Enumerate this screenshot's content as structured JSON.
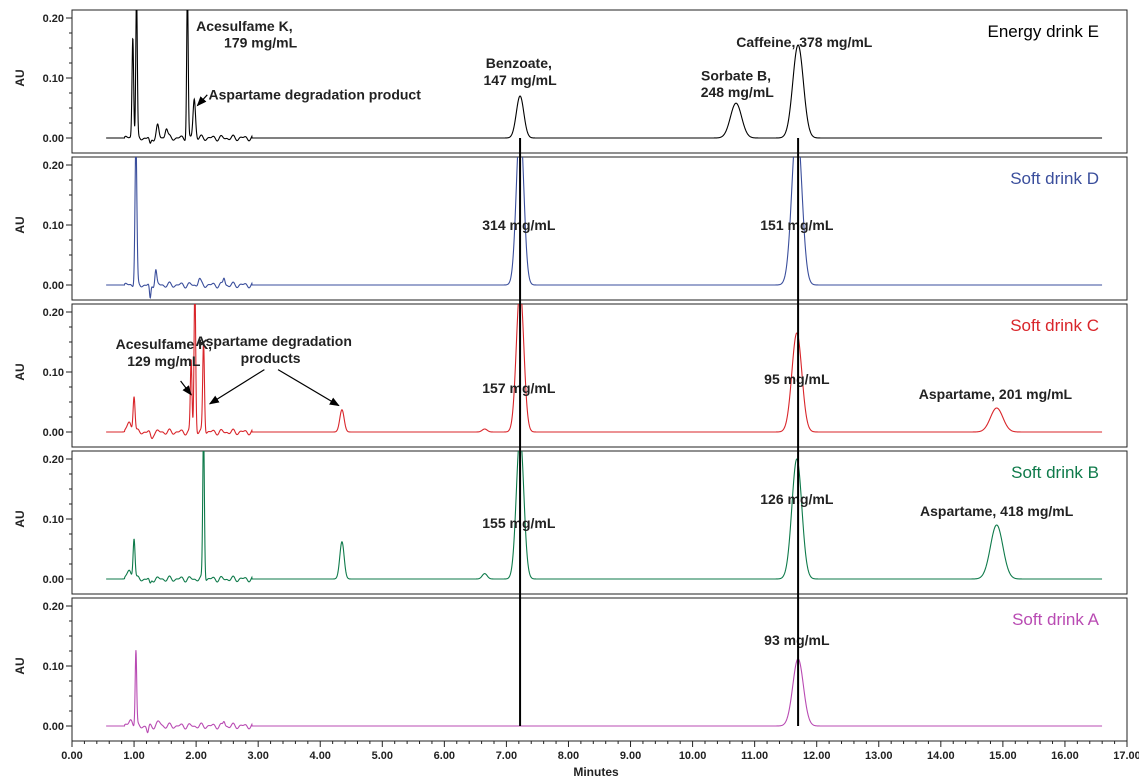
{
  "chart_data": {
    "type": "line",
    "xlabel": "Minutes",
    "ylabel": "AU",
    "xlim": [
      0,
      17
    ],
    "ylim": [
      0,
      0.2
    ],
    "x_ticks": [
      "0.00",
      "1.00",
      "2.00",
      "3.00",
      "4.00",
      "5.00",
      "6.00",
      "7.00",
      "8.00",
      "9.00",
      "10.00",
      "11.00",
      "12.00",
      "13.00",
      "14.00",
      "15.00",
      "16.00",
      "17.00"
    ],
    "y_ticks": [
      "0.00",
      "0.10",
      "0.20"
    ],
    "reference_lines_x": [
      7.22,
      11.7
    ],
    "panels": [
      {
        "name": "Energy drink E",
        "color": "#000000",
        "peaks": [
          {
            "t": 0.98,
            "h": 0.17,
            "w": 0.013
          },
          {
            "t": 1.04,
            "h": 0.24,
            "w": 0.012
          },
          {
            "t": 1.38,
            "h": 0.02,
            "w": 0.02
          },
          {
            "t": 1.52,
            "h": 0.018,
            "w": 0.02
          },
          {
            "t": 1.86,
            "h": 0.25,
            "w": 0.012
          },
          {
            "t": 1.97,
            "h": 0.065,
            "w": 0.02
          },
          {
            "t": 7.22,
            "h": 0.07,
            "w": 0.06
          },
          {
            "t": 10.7,
            "h": 0.058,
            "w": 0.09
          },
          {
            "t": 11.7,
            "h": 0.155,
            "w": 0.085
          }
        ],
        "dips": [
          {
            "t": 1.26,
            "h": -0.012,
            "w": 0.015
          }
        ],
        "annotations": [
          {
            "text": "Acesulfame K,",
            "x": 2.0,
            "y": 0.178,
            "anchor": "start"
          },
          {
            "text": "179 mg/mL",
            "x": 2.45,
            "y": 0.151,
            "anchor": "start"
          },
          {
            "text": "Aspartame degradation product",
            "x": 2.2,
            "y": 0.064,
            "anchor": "start"
          },
          {
            "text": "Benzoate,",
            "x": 7.2,
            "y": 0.117,
            "anchor": "middle"
          },
          {
            "text": "147 mg/mL",
            "x": 7.22,
            "y": 0.088,
            "anchor": "middle"
          },
          {
            "text": "Caffeine, 378 mg/mL",
            "x": 11.8,
            "y": 0.152,
            "anchor": "middle"
          },
          {
            "text": "Sorbate B,",
            "x": 10.7,
            "y": 0.096,
            "anchor": "middle"
          },
          {
            "text": "248 mg/mL",
            "x": 10.72,
            "y": 0.068,
            "anchor": "middle"
          }
        ],
        "arrows": [
          {
            "from": [
              2.18,
              0.072
            ],
            "to": [
              2.02,
              0.054
            ]
          }
        ]
      },
      {
        "name": "Soft drink D",
        "color": "#3a4e9c",
        "peaks": [
          {
            "t": 1.03,
            "h": 0.24,
            "w": 0.015
          },
          {
            "t": 1.35,
            "h": 0.025,
            "w": 0.015
          },
          {
            "t": 2.05,
            "h": 0.01,
            "w": 0.02
          },
          {
            "t": 2.45,
            "h": 0.012,
            "w": 0.015
          },
          {
            "t": 7.22,
            "h": 0.27,
            "w": 0.06
          },
          {
            "t": 11.68,
            "h": 0.27,
            "w": 0.08
          }
        ],
        "dips": [
          {
            "t": 1.26,
            "h": -0.025,
            "w": 0.012
          }
        ],
        "annotations": [
          {
            "text": "314 mg/mL",
            "x": 7.2,
            "y": 0.092,
            "anchor": "middle"
          },
          {
            "text": "151 mg/mL",
            "x": 11.68,
            "y": 0.092,
            "anchor": "middle"
          }
        ],
        "arrows": []
      },
      {
        "name": "Soft drink C",
        "color": "#d9252a",
        "peaks": [
          {
            "t": 0.92,
            "h": 0.016,
            "w": 0.03
          },
          {
            "t": 1.0,
            "h": 0.062,
            "w": 0.016
          },
          {
            "t": 1.92,
            "h": 0.12,
            "w": 0.013
          },
          {
            "t": 1.98,
            "h": 0.25,
            "w": 0.013
          },
          {
            "t": 2.12,
            "h": 0.15,
            "w": 0.014
          },
          {
            "t": 4.35,
            "h": 0.037,
            "w": 0.035
          },
          {
            "t": 6.65,
            "h": 0.005,
            "w": 0.04
          },
          {
            "t": 7.22,
            "h": 0.24,
            "w": 0.06
          },
          {
            "t": 11.68,
            "h": 0.165,
            "w": 0.08
          },
          {
            "t": 14.9,
            "h": 0.04,
            "w": 0.1
          }
        ],
        "dips": [
          {
            "t": 1.28,
            "h": -0.01,
            "w": 0.02
          }
        ],
        "annotations": [
          {
            "text": "Acesulfame K,",
            "x": 1.48,
            "y": 0.138,
            "anchor": "middle"
          },
          {
            "text": "129 mg/mL",
            "x": 1.48,
            "y": 0.11,
            "anchor": "middle"
          },
          {
            "text": "Aspartame degradation",
            "x": 3.25,
            "y": 0.143,
            "anchor": "middle"
          },
          {
            "text": "products",
            "x": 3.2,
            "y": 0.115,
            "anchor": "middle"
          },
          {
            "text": "157 mg/mL",
            "x": 7.2,
            "y": 0.065,
            "anchor": "middle"
          },
          {
            "text": "95 mg/mL",
            "x": 11.68,
            "y": 0.08,
            "anchor": "middle"
          },
          {
            "text": "Aspartame, 201 mg/mL",
            "x": 14.88,
            "y": 0.055,
            "anchor": "middle"
          }
        ],
        "arrows": [
          {
            "from": [
              1.75,
              0.085
            ],
            "to": [
              1.92,
              0.062
            ]
          },
          {
            "from": [
              3.1,
              0.104
            ],
            "to": [
              2.22,
              0.047
            ]
          },
          {
            "from": [
              3.32,
              0.104
            ],
            "to": [
              4.3,
              0.044
            ]
          }
        ]
      },
      {
        "name": "Soft drink B",
        "color": "#0e7a4a",
        "peaks": [
          {
            "t": 0.92,
            "h": 0.014,
            "w": 0.03
          },
          {
            "t": 1.0,
            "h": 0.07,
            "w": 0.016
          },
          {
            "t": 2.12,
            "h": 0.25,
            "w": 0.013
          },
          {
            "t": 4.35,
            "h": 0.062,
            "w": 0.035
          },
          {
            "t": 6.65,
            "h": 0.009,
            "w": 0.04
          },
          {
            "t": 7.22,
            "h": 0.24,
            "w": 0.06
          },
          {
            "t": 11.68,
            "h": 0.2,
            "w": 0.08
          },
          {
            "t": 14.9,
            "h": 0.09,
            "w": 0.1
          }
        ],
        "dips": [
          {
            "t": 1.26,
            "h": -0.01,
            "w": 0.015
          }
        ],
        "annotations": [
          {
            "text": "155 mg/mL",
            "x": 7.2,
            "y": 0.085,
            "anchor": "middle"
          },
          {
            "text": "126 mg/mL",
            "x": 11.68,
            "y": 0.125,
            "anchor": "middle"
          },
          {
            "text": "Aspartame, 418 mg/mL",
            "x": 14.9,
            "y": 0.105,
            "anchor": "middle"
          }
        ],
        "arrows": []
      },
      {
        "name": "Soft drink A",
        "color": "#b94bb3",
        "peaks": [
          {
            "t": 0.95,
            "h": 0.01,
            "w": 0.03
          },
          {
            "t": 1.03,
            "h": 0.125,
            "w": 0.012
          },
          {
            "t": 1.4,
            "h": 0.006,
            "w": 0.03
          },
          {
            "t": 2.45,
            "h": 0.008,
            "w": 0.015
          },
          {
            "t": 11.7,
            "h": 0.112,
            "w": 0.085
          }
        ],
        "dips": [
          {
            "t": 1.22,
            "h": -0.012,
            "w": 0.015
          }
        ],
        "annotations": [
          {
            "text": "93 mg/mL",
            "x": 11.68,
            "y": 0.135,
            "anchor": "middle"
          }
        ],
        "arrows": []
      }
    ]
  }
}
